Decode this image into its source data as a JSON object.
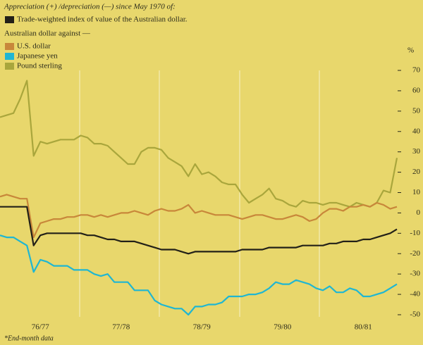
{
  "chart_data": {
    "type": "line",
    "subtitle": "Appreciation (+) /depreciation (—) since May 1970 of:",
    "legend_heading": "Australian dollar against —",
    "y_unit": "%",
    "footnote": "*End-month data",
    "categories": [
      null,
      null,
      null,
      null,
      null,
      null,
      "76/77",
      null,
      null,
      null,
      null,
      null,
      null,
      null,
      null,
      null,
      null,
      null,
      "77/78",
      null,
      null,
      null,
      null,
      null,
      null,
      null,
      null,
      null,
      null,
      null,
      "78/79",
      null,
      null,
      null,
      null,
      null,
      null,
      null,
      null,
      null,
      null,
      null,
      "79/80",
      null,
      null,
      null,
      null,
      null,
      null,
      null,
      null,
      null,
      null,
      null,
      "80/81",
      null,
      null,
      null,
      null,
      null
    ],
    "series": [
      {
        "name": "Trade-weighted index of value of the Australian dollar.",
        "color": "#222018",
        "values": [
          3,
          3,
          3,
          3,
          3,
          -16,
          -11,
          -10,
          -10,
          -10,
          -10,
          -10,
          -10,
          -11,
          -11,
          -12,
          -13,
          -13,
          -14,
          -14,
          -14,
          -15,
          -16,
          -17,
          -18,
          -18,
          -18,
          -19,
          -20,
          -19,
          -19,
          -19,
          -19,
          -19,
          -19,
          -19,
          -18,
          -18,
          -18,
          -18,
          -17,
          -17,
          -17,
          -17,
          -17,
          -16,
          -16,
          -16,
          -16,
          -15,
          -15,
          -14,
          -14,
          -14,
          -13,
          -13,
          -12,
          -11,
          -10,
          -8
        ]
      },
      {
        "name": "U.S. dollar",
        "color": "#c8873a",
        "values": [
          8,
          9,
          8,
          7,
          7,
          -12,
          -5,
          -4,
          -3,
          -3,
          -2,
          -2,
          -1,
          -1,
          -2,
          -1,
          -2,
          -1,
          0,
          0,
          1,
          0,
          -1,
          1,
          2,
          1,
          1,
          2,
          4,
          0,
          1,
          0,
          -1,
          -1,
          -1,
          -2,
          -3,
          -2,
          -1,
          -1,
          -2,
          -3,
          -3,
          -2,
          -1,
          -2,
          -4,
          -3,
          0,
          2,
          2,
          1,
          3,
          3,
          4,
          3,
          5,
          4,
          2,
          3
        ]
      },
      {
        "name": "Japanese yen",
        "color": "#1fb6d2",
        "values": [
          -11,
          -12,
          -12,
          -14,
          -16,
          -29,
          -23,
          -24,
          -26,
          -26,
          -26,
          -28,
          -28,
          -28,
          -30,
          -31,
          -30,
          -34,
          -34,
          -34,
          -38,
          -38,
          -38,
          -43,
          -45,
          -46,
          -47,
          -47,
          -50,
          -46,
          -46,
          -45,
          -45,
          -44,
          -41,
          -41,
          -41,
          -40,
          -40,
          -39,
          -37,
          -34,
          -35,
          -35,
          -33,
          -34,
          -35,
          -37,
          -38,
          -36,
          -39,
          -39,
          -37,
          -38,
          -41,
          -41,
          -40,
          -39,
          -37,
          -35
        ]
      },
      {
        "name": "Pound sterling",
        "color": "#a9a63c",
        "values": [
          47,
          48,
          49,
          56,
          65,
          28,
          35,
          34,
          35,
          36,
          36,
          36,
          38,
          37,
          34,
          34,
          33,
          30,
          27,
          24,
          24,
          30,
          32,
          32,
          31,
          27,
          25,
          23,
          18,
          24,
          19,
          20,
          18,
          15,
          14,
          14,
          9,
          5,
          7,
          9,
          12,
          7,
          6,
          4,
          3,
          6,
          5,
          5,
          4,
          5,
          5,
          4,
          3,
          5,
          4,
          3,
          5,
          11,
          10,
          27
        ]
      }
    ],
    "ylim": [
      -50,
      70
    ],
    "yticks": [
      70,
      60,
      50,
      40,
      30,
      20,
      10,
      0,
      -10,
      -20,
      -30,
      -40,
      -50
    ]
  }
}
